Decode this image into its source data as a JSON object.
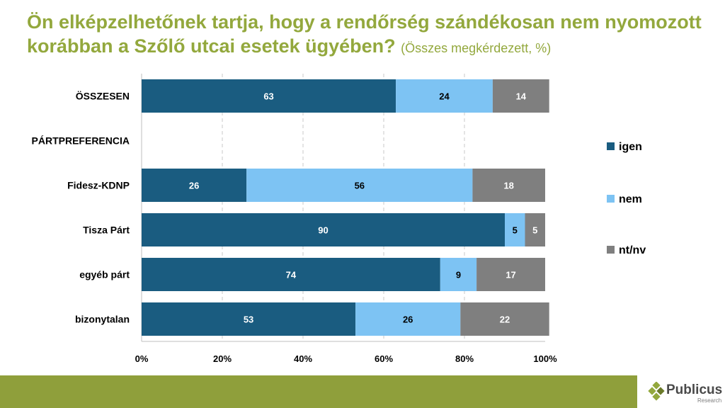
{
  "title": {
    "main": "Ön elképzelhetőnek tartja, hogy a rendőrség szándékosan nem nyomozott korábban a Szőlő utcai esetek ügyében?",
    "sub": "(Összes megkérdezett, %)"
  },
  "colors": {
    "title": "#93a83d",
    "band": "#8f9f3b"
  },
  "chart_data": {
    "type": "bar",
    "orientation": "horizontal",
    "stacked": true,
    "percent_axis": true,
    "categories": [
      "ÖSSZESEN",
      "PÁRTPREFERENCIA",
      "Fidesz-KDNP",
      "Tisza Párt",
      "egyéb párt",
      "bizonytalan"
    ],
    "series": [
      {
        "name": "igen",
        "color": "#1a5c80",
        "values": [
          63,
          null,
          26,
          90,
          74,
          53
        ]
      },
      {
        "name": "nem",
        "color": "#7dc3f3",
        "values": [
          24,
          null,
          56,
          5,
          9,
          26
        ]
      },
      {
        "name": "nt/nv",
        "color": "#7f7f7f",
        "values": [
          14,
          null,
          18,
          5,
          17,
          22
        ]
      }
    ],
    "xticks": [
      "0%",
      "20%",
      "40%",
      "60%",
      "80%",
      "100%"
    ],
    "xlim": [
      0,
      100
    ],
    "grid": "vertical dashed",
    "legend_position": "right"
  },
  "logo": {
    "name": "Publicus",
    "sub": "Research"
  }
}
